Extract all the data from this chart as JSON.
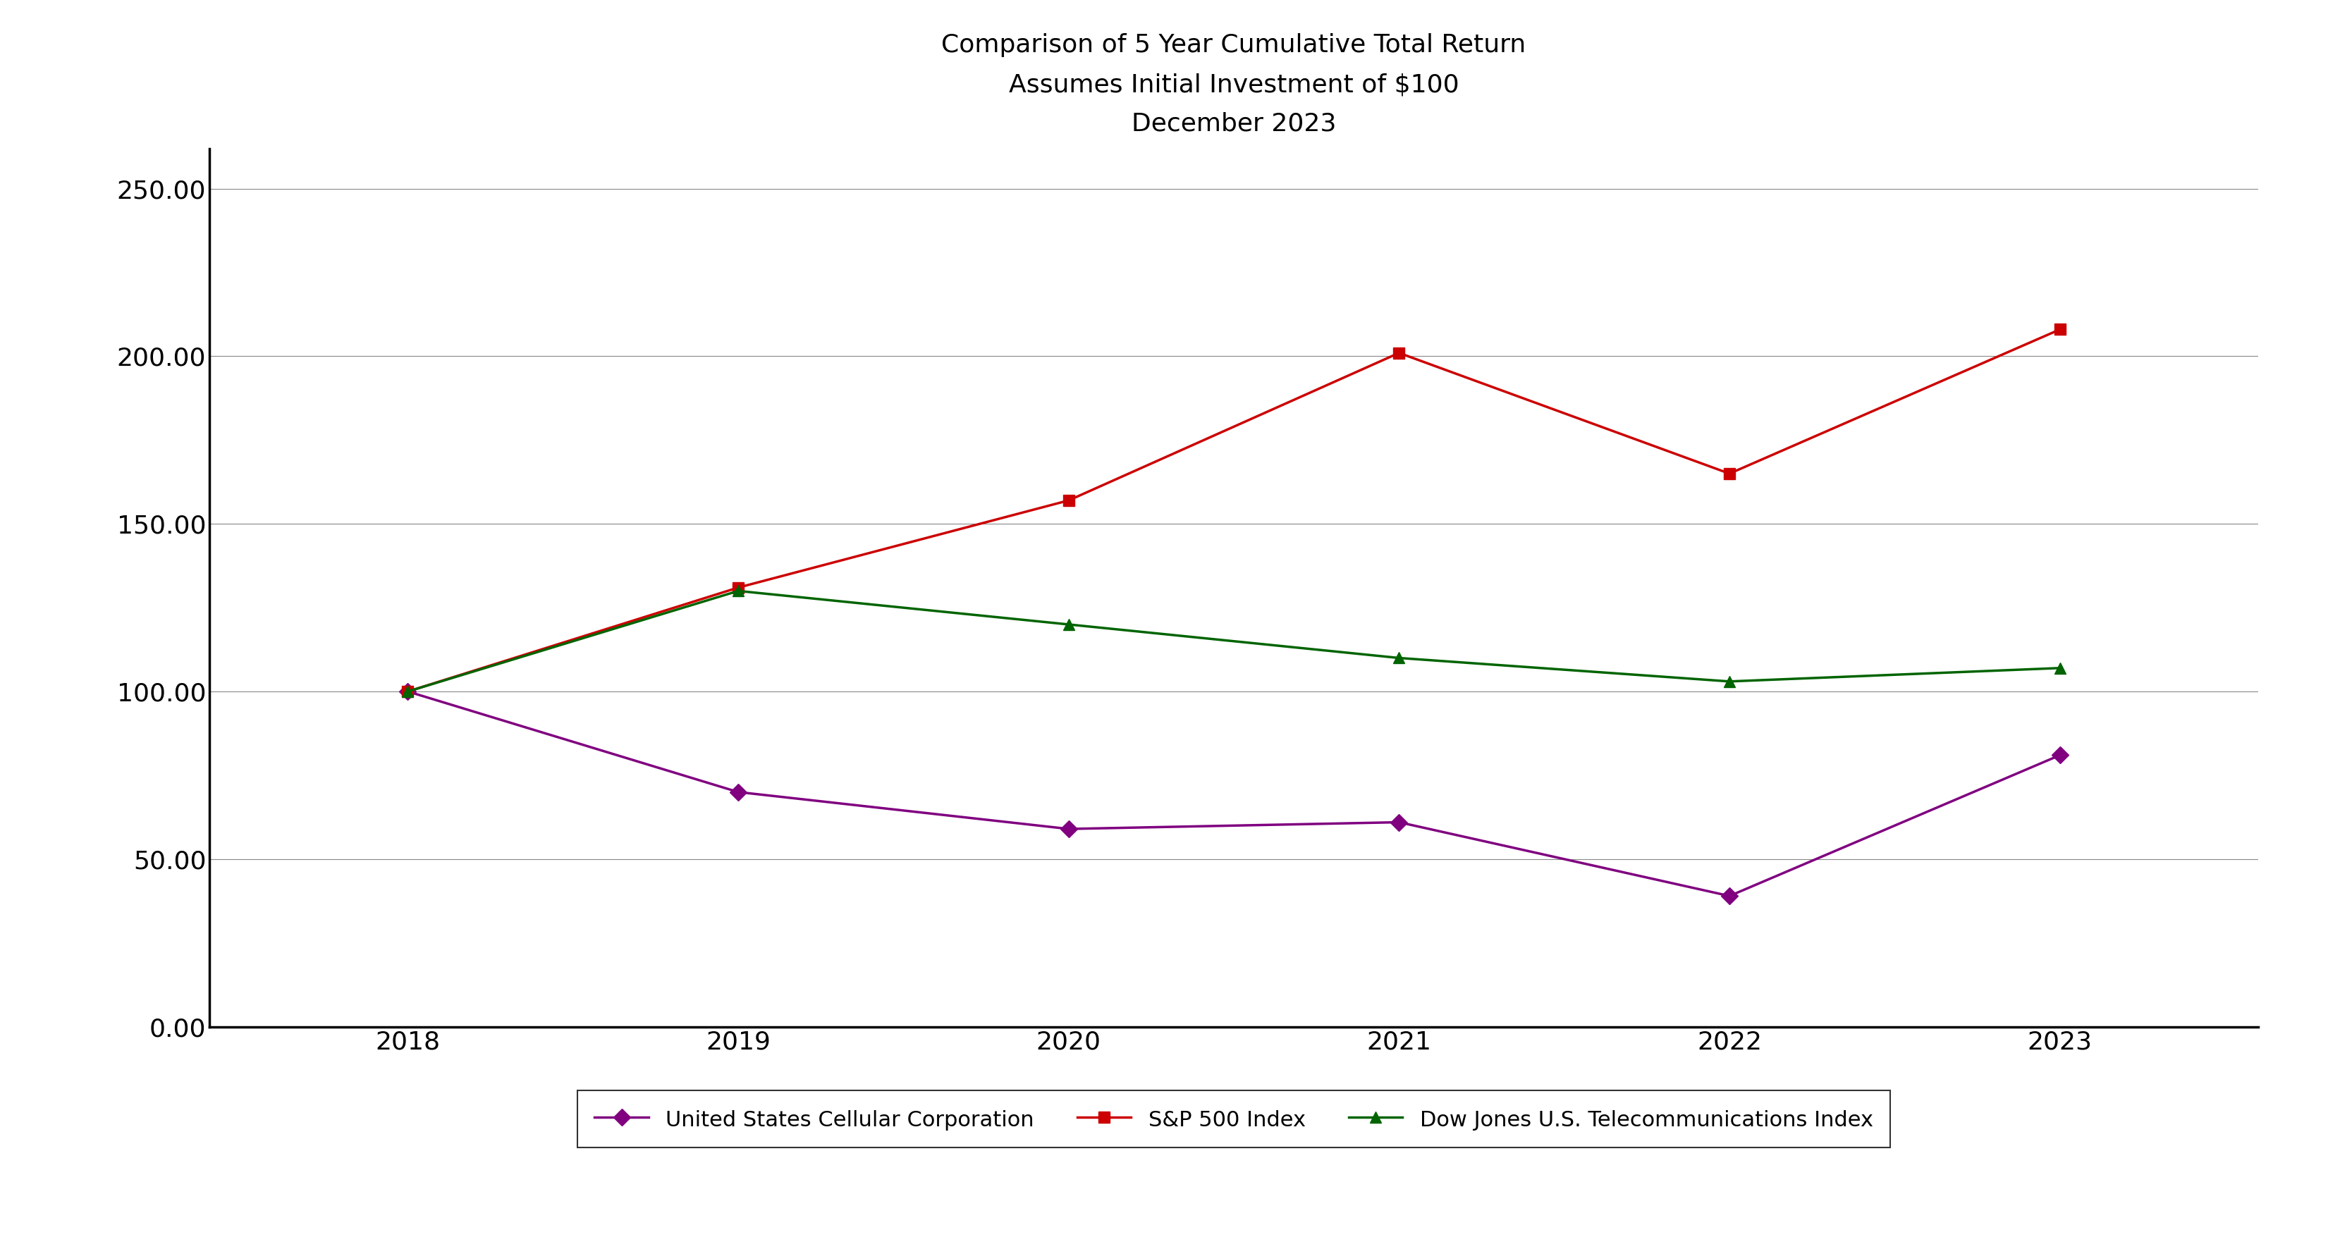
{
  "title_line1": "Comparison of 5 Year Cumulative Total Return",
  "title_line2": "Assumes Initial Investment of $100",
  "title_line3": "December 2023",
  "years": [
    2018,
    2019,
    2020,
    2021,
    2022,
    2023
  ],
  "series": {
    "USM": {
      "label": "United States Cellular Corporation",
      "color": "#800080",
      "marker": "D",
      "values": [
        100.0,
        70.0,
        59.0,
        61.0,
        39.0,
        81.0
      ]
    },
    "SP500": {
      "label": "S&P 500 Index",
      "color": "#cc0000",
      "marker": "s",
      "values": [
        100.0,
        131.0,
        157.0,
        201.0,
        165.0,
        208.0
      ]
    },
    "DJTEL": {
      "label": "Dow Jones U.S. Telecommunications Index",
      "color": "#006400",
      "marker": "^",
      "values": [
        100.0,
        130.0,
        120.0,
        110.0,
        103.0,
        107.0
      ]
    }
  },
  "ylim": [
    0.0,
    262.0
  ],
  "yticks": [
    0.0,
    50.0,
    100.0,
    150.0,
    200.0,
    250.0
  ],
  "xlim": [
    2017.4,
    2023.6
  ],
  "background_color": "#ffffff",
  "grid_color": "#888888",
  "title_fontsize": 26,
  "tick_fontsize": 26,
  "legend_fontsize": 22,
  "line_width": 2.5,
  "marker_size": 12
}
